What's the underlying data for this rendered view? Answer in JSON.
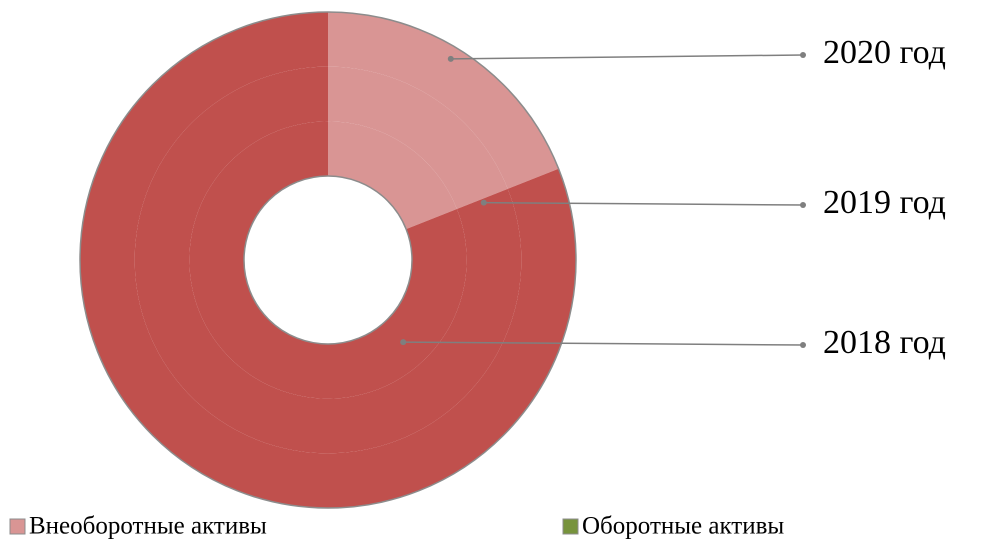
{
  "chart_data": {
    "type": "doughnut",
    "categories": [
      "Внеоборотные активы",
      "Оборотные активы"
    ],
    "legend_colors": [
      "#d99594",
      "#77933c"
    ],
    "segment_colors": [
      "#d99594",
      "#c0504d"
    ],
    "series": [
      {
        "name": "2018 год",
        "values": [
          19,
          81
        ]
      },
      {
        "name": "2019 год",
        "values": [
          19,
          81
        ]
      },
      {
        "name": "2020 год",
        "values": [
          19,
          81
        ]
      }
    ],
    "legend": "bottom"
  }
}
